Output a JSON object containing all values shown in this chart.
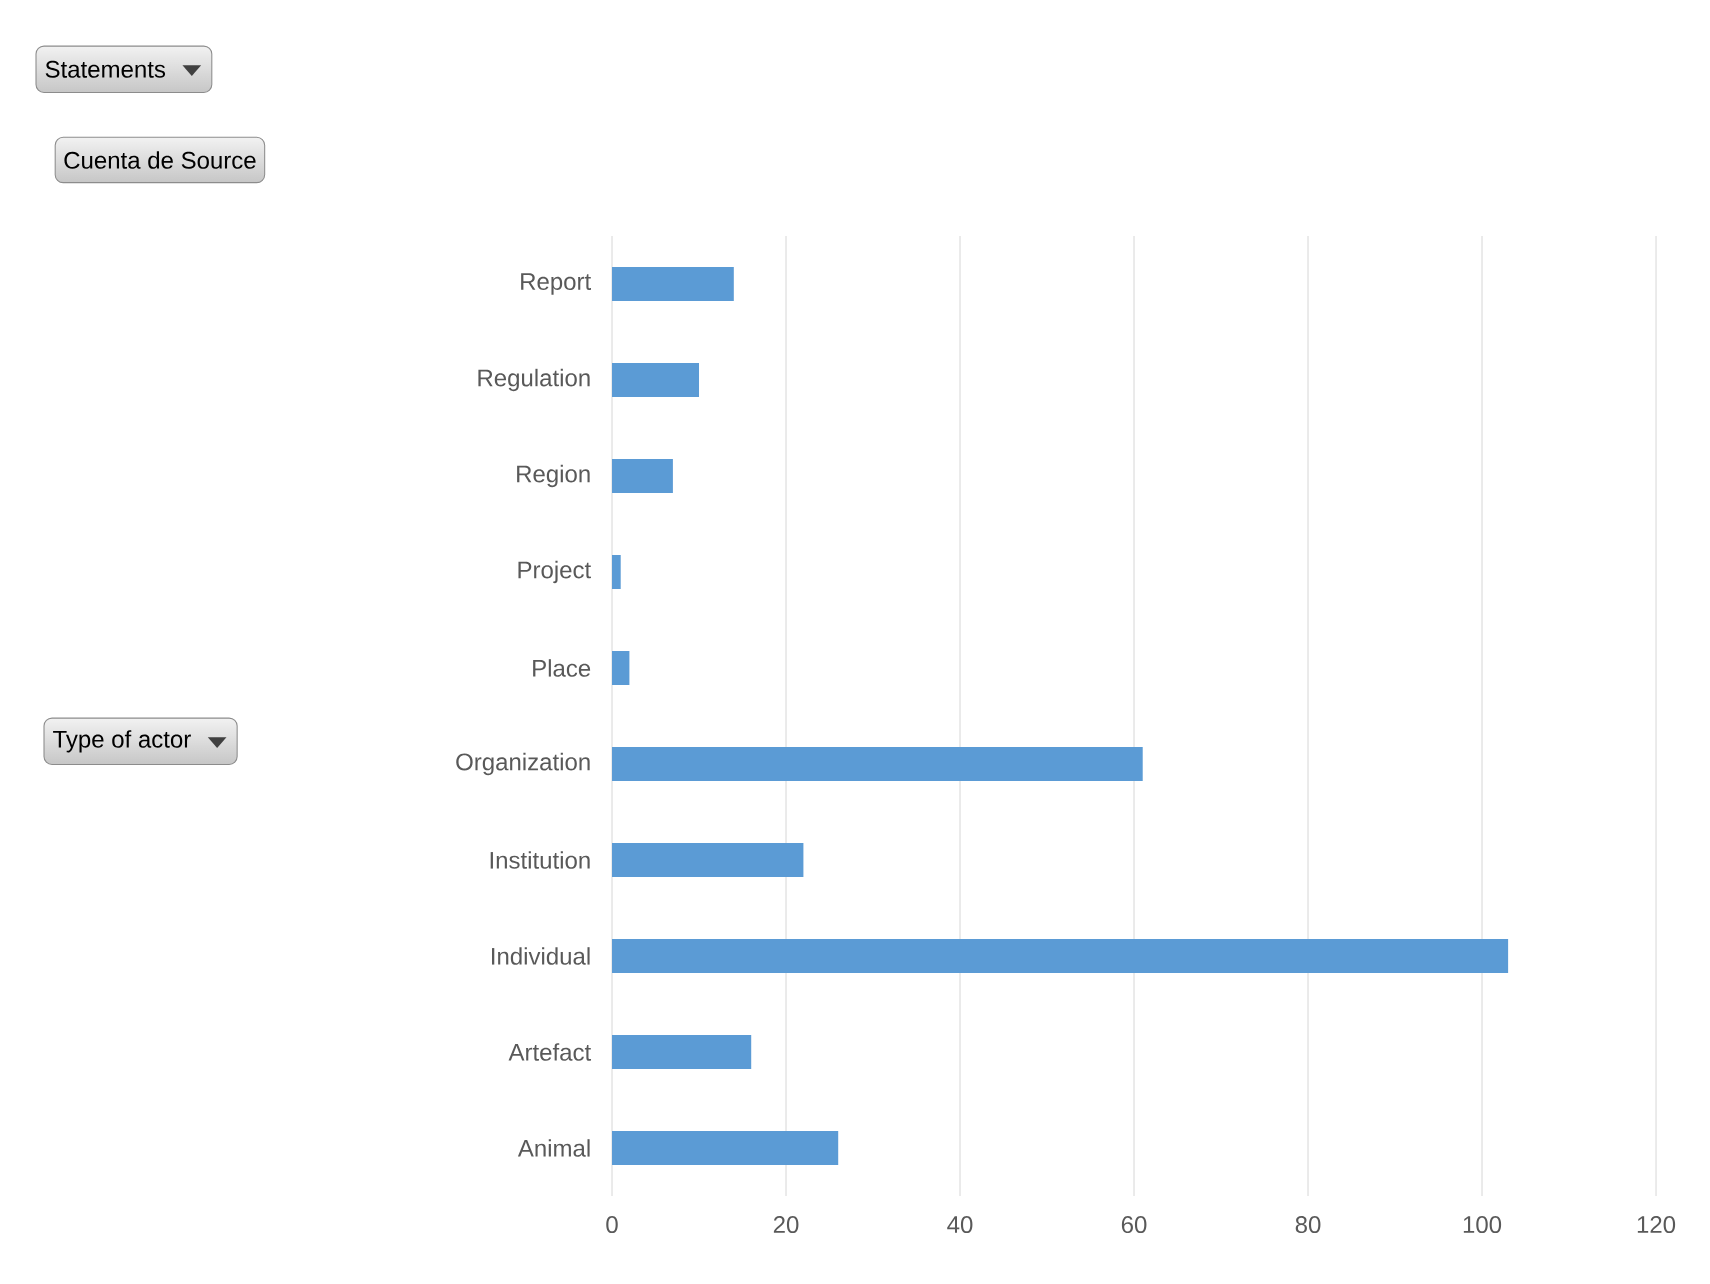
{
  "chart_data": {
    "type": "bar",
    "orientation": "horizontal",
    "categories": [
      "Report",
      "Regulation",
      "Region",
      "Project",
      "Place",
      "Organization",
      "Institution",
      "Individual",
      "Artefact",
      "Animal"
    ],
    "values": [
      14,
      10,
      7,
      1,
      2,
      61,
      22,
      103,
      16,
      26
    ],
    "color": "#5b9bd5",
    "xlim": [
      0,
      120
    ],
    "xticks": [
      0,
      20,
      40,
      60,
      80,
      100,
      120
    ],
    "grid": "x",
    "annotations": [
      "Statements",
      "Cuenta de Source",
      "Type of actor"
    ]
  }
}
